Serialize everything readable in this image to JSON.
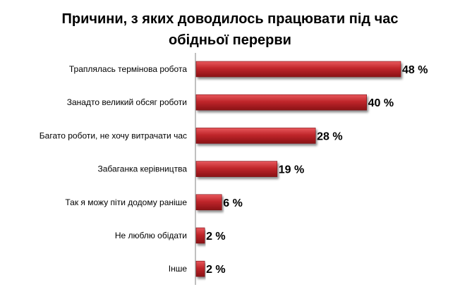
{
  "chart_data": {
    "type": "bar",
    "orientation": "horizontal",
    "title_lines": [
      "Причини, з яких доводилось працювати під час",
      "обідньої перерви"
    ],
    "categories": [
      "Траплялась термінова робота",
      "Занадто великий обсяг роботи",
      "Багато роботи, не хочу витрачати час",
      "Забаганка керівництва",
      "Так я можу піти додому раніше",
      "Не люблю обідати",
      "Інше"
    ],
    "values": [
      48,
      40,
      28,
      19,
      6,
      2,
      2
    ],
    "value_labels": [
      "48 %",
      "40 %",
      "28 %",
      "19 %",
      "6 %",
      "2 %",
      "2 %"
    ],
    "xlim": [
      0,
      48
    ],
    "bar_color": "#c0262b",
    "grid": false,
    "legend": false
  }
}
